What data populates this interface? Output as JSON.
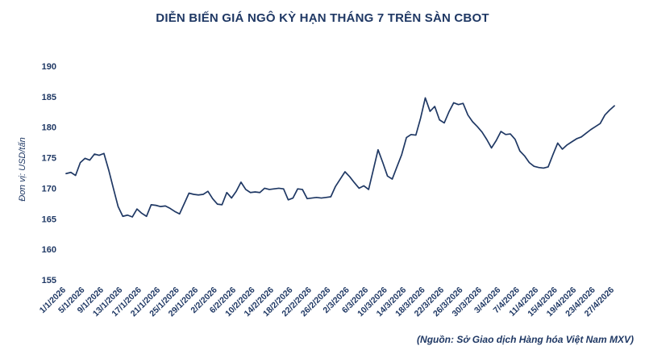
{
  "page": {
    "title": "DIỄN BIẾN GIÁ NGÔ KỲ HẠN THÁNG 7 TRÊN SÀN CBOT",
    "y_axis_unit": "Đơn vị: USD/tấn",
    "source_note": "(Nguồn: Sở Giao dịch Hàng hóa Việt Nam MXV)"
  },
  "theme": {
    "accent": "#1f3864",
    "line_color": "#1f3864",
    "background": "#ffffff"
  },
  "chart_data": {
    "type": "line",
    "title": "DIỄN BIẾN GIÁ NGÔ KỲ HẠN THÁNG 7 TRÊN SÀN CBOT",
    "ylabel": "Đơn vị: USD/tấn",
    "source": "(Nguồn: Sở Giao dịch Hàng hóa Việt Nam MXV)",
    "grid": false,
    "legend": false,
    "ylim": [
      155,
      190
    ],
    "y_ticks": [
      155,
      160,
      165,
      170,
      175,
      180,
      185,
      190
    ],
    "tick_every": 4,
    "x_tick_labels": [
      "1/1/2026",
      "5/1/2026",
      "9/1/2026",
      "13/1/2026",
      "17/1/2026",
      "21/1/2026",
      "25/1/2026",
      "29/1/2026",
      "2/2/2026",
      "6/2/2026",
      "10/2/2026",
      "14/2/2026",
      "18/2/2026",
      "22/2/2026",
      "26/2/2026",
      "2/3/2026",
      "6/3/2026",
      "10/3/2026",
      "14/3/2026",
      "18/3/2026",
      "22/3/2026",
      "26/3/2026",
      "30/3/2026",
      "3/4/2026",
      "7/4/2026",
      "11/4/2026",
      "15/4/2026",
      "19/4/2026",
      "23/4/2026",
      "27/4/2026"
    ],
    "values": [
      172.4,
      172.6,
      172.1,
      174.2,
      174.9,
      174.6,
      175.6,
      175.4,
      175.7,
      173.0,
      170.0,
      167.0,
      165.4,
      165.6,
      165.3,
      166.6,
      165.9,
      165.4,
      167.3,
      167.2,
      167.0,
      167.1,
      166.7,
      166.2,
      165.8,
      167.5,
      169.2,
      169.0,
      168.9,
      169.0,
      169.5,
      168.3,
      167.4,
      167.3,
      169.3,
      168.4,
      169.5,
      171.0,
      169.8,
      169.3,
      169.4,
      169.3,
      170.0,
      169.8,
      169.9,
      170.0,
      169.9,
      168.1,
      168.4,
      169.9,
      169.8,
      168.3,
      168.4,
      168.5,
      168.4,
      168.5,
      168.6,
      170.3,
      171.5,
      172.7,
      171.9,
      170.9,
      170.0,
      170.4,
      169.8,
      173.0,
      176.3,
      174.2,
      172.0,
      171.5,
      173.5,
      175.5,
      178.3,
      178.8,
      178.7,
      181.5,
      184.8,
      182.6,
      183.4,
      181.2,
      180.7,
      182.5,
      184.0,
      183.7,
      183.9,
      182.0,
      180.9,
      180.1,
      179.2,
      178.0,
      176.6,
      177.8,
      179.3,
      178.8,
      178.9,
      178.0,
      176.1,
      175.3,
      174.2,
      173.6,
      173.4,
      173.3,
      173.5,
      175.5,
      177.4,
      176.4,
      177.1,
      177.6,
      178.1,
      178.4,
      179.0,
      179.6,
      180.1,
      180.6,
      182.0,
      182.8,
      183.5
    ]
  }
}
